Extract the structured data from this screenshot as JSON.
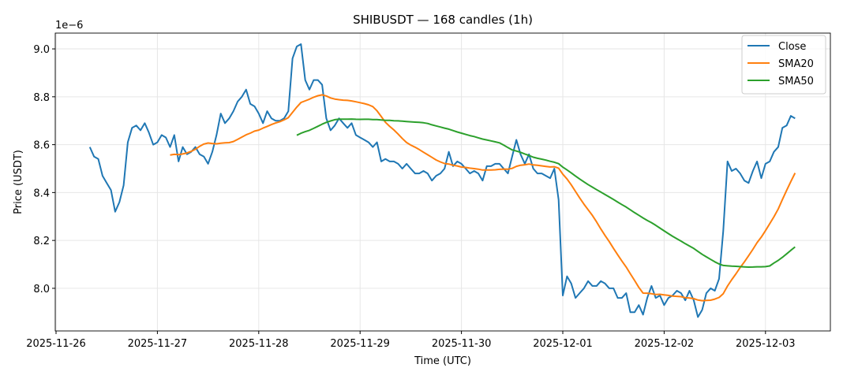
{
  "chart_data": {
    "type": "line",
    "title": "SHIBUSDT — 168 candles (1h)",
    "xlabel": "Time (UTC)",
    "ylabel": "Price (USDT)",
    "y_offset_label": "1e−6",
    "y_scale": 1e-06,
    "ylim": [
      7.822,
      9.066
    ],
    "yticks": [
      8.0,
      8.2,
      8.4,
      8.6,
      8.8,
      9.0
    ],
    "ytick_labels": [
      "8.0",
      "8.2",
      "8.4",
      "8.6",
      "8.8",
      "9.0"
    ],
    "xticks": [
      "2025-11-26",
      "2025-11-27",
      "2025-11-28",
      "2025-11-29",
      "2025-11-30",
      "2025-12-01",
      "2025-12-02",
      "2025-12-03"
    ],
    "start": "2025-11-26T08:00Z",
    "interval_hours": 1,
    "grid": true,
    "legend_position": "top-right",
    "series": [
      {
        "name": "Close",
        "color": "#1f77b4",
        "values": [
          8.59,
          8.55,
          8.54,
          8.47,
          8.44,
          8.41,
          8.32,
          8.36,
          8.43,
          8.61,
          8.67,
          8.68,
          8.66,
          8.69,
          8.65,
          8.6,
          8.61,
          8.64,
          8.63,
          8.59,
          8.64,
          8.53,
          8.59,
          8.56,
          8.57,
          8.59,
          8.56,
          8.55,
          8.52,
          8.57,
          8.64,
          8.73,
          8.69,
          8.71,
          8.74,
          8.78,
          8.8,
          8.83,
          8.77,
          8.76,
          8.73,
          8.69,
          8.74,
          8.71,
          8.7,
          8.7,
          8.71,
          8.74,
          8.96,
          9.01,
          9.02,
          8.87,
          8.83,
          8.87,
          8.87,
          8.85,
          8.71,
          8.66,
          8.68,
          8.71,
          8.69,
          8.67,
          8.69,
          8.64,
          8.63,
          8.62,
          8.61,
          8.59,
          8.61,
          8.53,
          8.54,
          8.53,
          8.53,
          8.52,
          8.5,
          8.52,
          8.5,
          8.48,
          8.48,
          8.49,
          8.48,
          8.45,
          8.47,
          8.48,
          8.5,
          8.57,
          8.51,
          8.53,
          8.52,
          8.5,
          8.48,
          8.49,
          8.48,
          8.45,
          8.51,
          8.51,
          8.52,
          8.52,
          8.5,
          8.48,
          8.55,
          8.62,
          8.56,
          8.52,
          8.56,
          8.5,
          8.48,
          8.48,
          8.47,
          8.46,
          8.5,
          8.37,
          7.97,
          8.05,
          8.02,
          7.96,
          7.98,
          8.0,
          8.03,
          8.01,
          8.01,
          8.03,
          8.02,
          8.0,
          8.0,
          7.96,
          7.96,
          7.98,
          7.9,
          7.9,
          7.93,
          7.89,
          7.96,
          8.01,
          7.96,
          7.97,
          7.93,
          7.96,
          7.97,
          7.99,
          7.98,
          7.95,
          7.99,
          7.95,
          7.88,
          7.91,
          7.98,
          8.0,
          7.99,
          8.04,
          8.24,
          8.53,
          8.49,
          8.5,
          8.48,
          8.45,
          8.44,
          8.49,
          8.53,
          8.46,
          8.52,
          8.53,
          8.57,
          8.59,
          8.67,
          8.68,
          8.72,
          8.71
        ]
      },
      {
        "name": "SMA20",
        "color": "#ff7f0e",
        "window": 20
      },
      {
        "name": "SMA50",
        "color": "#2ca02c",
        "window": 50
      }
    ]
  }
}
